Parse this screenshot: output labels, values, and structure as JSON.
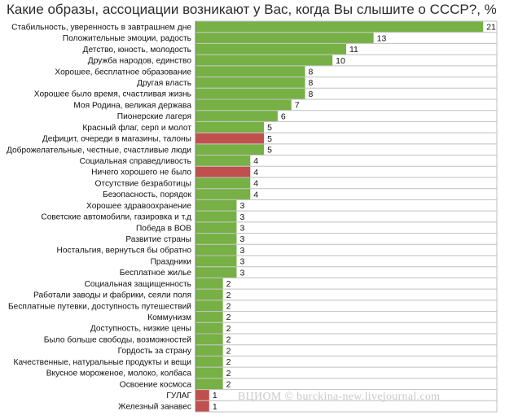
{
  "colors": {
    "positive": "#77b045",
    "negative": "#c0504d",
    "grid": "#bfbfbf",
    "axis": "#7f7f7f"
  },
  "chart_data": {
    "type": "bar",
    "orientation": "horizontal",
    "title": "Какие образы, ассоциации возникают у Вас, когда Вы слышите о СССР?, %",
    "xlim": [
      0,
      22
    ],
    "grid": true,
    "categories": [
      "Стабильность, уверенность в завтрашнем дне",
      "Положительные эмоции, радость",
      "Детство, юность, молодость",
      "Дружба народов, единство",
      "Хорошее, бесплатное образование",
      "Другая власть",
      "Хорошее было время, счастливая жизнь",
      "Моя Родина, великая держава",
      "Пионерские лагеря",
      "Красный флаг, серп и молот",
      "Дефицит, очереди в магазины, талоны",
      "Доброжелательные, честные, счастливые люди",
      "Социальная справедливость",
      "Ничего хорошего не было",
      "Отсутствие безработицы",
      "Безопасность, порядок",
      "Хорошее здравоохранение",
      "Советские автомобили, газировка и т.д",
      "Победа в ВОВ",
      "Развитие страны",
      "Ностальгия, вернуться бы обратно",
      "Праздники",
      "Бесплатное жилье",
      "Социальная защищенность",
      "Работали заводы и фабрики, сеяли поля",
      "Бесплатные путевки, доступность путешествий",
      "Коммунизм",
      "Доступность, низкие цены",
      "Было больше свободы, возможностей",
      "Гордость за страну",
      "Качественные, натуральные продукты и вещи",
      "Вкусное мороженое, молоко, колбаса",
      "Освоение космоса",
      "ГУЛАГ",
      "Железный занавес"
    ],
    "values": [
      21,
      13,
      11,
      10,
      8,
      8,
      8,
      7,
      6,
      5,
      5,
      5,
      4,
      4,
      4,
      4,
      3,
      3,
      3,
      3,
      3,
      3,
      3,
      2,
      2,
      2,
      2,
      2,
      2,
      2,
      2,
      2,
      2,
      1,
      1
    ],
    "sentiment": [
      "positive",
      "positive",
      "positive",
      "positive",
      "positive",
      "positive",
      "positive",
      "positive",
      "positive",
      "positive",
      "negative",
      "positive",
      "positive",
      "negative",
      "positive",
      "positive",
      "positive",
      "positive",
      "positive",
      "positive",
      "positive",
      "positive",
      "positive",
      "positive",
      "positive",
      "positive",
      "positive",
      "positive",
      "positive",
      "positive",
      "positive",
      "positive",
      "positive",
      "negative",
      "negative"
    ]
  },
  "watermark": "ВЦИОМ © burckina-new.livejournal.com"
}
